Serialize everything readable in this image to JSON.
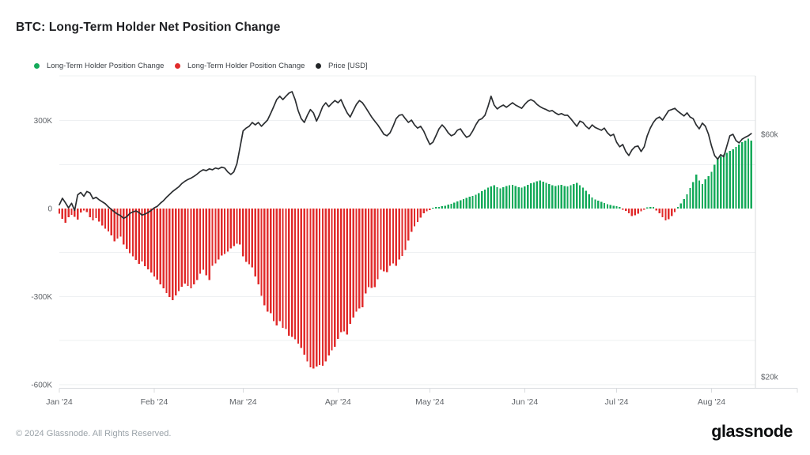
{
  "title": "BTC: Long-Term Holder Net Position Change",
  "legend": [
    {
      "label": "Long-Term Holder Position Change",
      "color": "#14aa5a"
    },
    {
      "label": "Long-Term Holder Position Change",
      "color": "#e12b2b"
    },
    {
      "label": "Price [USD]",
      "color": "#222527"
    }
  ],
  "footer": {
    "copyright": "© 2024 Glassnode. All Rights Reserved.",
    "brand": "glassnode"
  },
  "colors": {
    "positive_bar": "#14aa5a",
    "negative_bar": "#e12b2b",
    "price_line": "#2b2e31",
    "gridline": "#eef0f2",
    "axis_line": "#d8dbde",
    "tick_text": "#5f6368",
    "background": "#ffffff"
  },
  "axes": {
    "left": {
      "unit": "K BTC",
      "tick_labels": [
        "300K",
        "0",
        "-300K",
        "-600K"
      ],
      "tick_values": [
        300,
        0,
        -300,
        -600
      ],
      "gridline_values": [
        300,
        150,
        -150,
        -300,
        -450,
        -600
      ]
    },
    "right": {
      "unit": "USD",
      "scale": "log",
      "tick_labels": [
        "$60k",
        "$20k"
      ],
      "tick_values": [
        60,
        20
      ]
    },
    "bottom": {
      "tick_labels": [
        "Jan '24",
        "Feb '24",
        "Mar '24",
        "Apr '24",
        "May '24",
        "Jun '24",
        "Jul '24",
        "Aug '24"
      ],
      "tick_day_offsets": [
        0,
        31,
        60,
        91,
        121,
        152,
        182,
        213
      ]
    }
  },
  "chart_data": {
    "type": "combo-bar-line",
    "x_start": "2024-01-01",
    "frequency": "daily",
    "n_points": 227,
    "left_axis_range_k": [
      -650,
      330
    ],
    "right_axis_range_usd": [
      20000,
      60000
    ],
    "right_axis_scale": "log",
    "grid": "horizontal-only",
    "legend_position": "top-left",
    "series": [
      {
        "name": "Long-Term Holder Position Change",
        "render": "bar",
        "axis": "left",
        "unit": "K BTC",
        "values": [
          -18,
          -35,
          -48,
          -30,
          -22,
          -28,
          -38,
          -14,
          -7,
          -12,
          -30,
          -40,
          -32,
          -45,
          -58,
          -68,
          -78,
          -92,
          -112,
          -102,
          -96,
          -122,
          -138,
          -152,
          -163,
          -175,
          -188,
          -180,
          -197,
          -208,
          -218,
          -232,
          -242,
          -258,
          -272,
          -288,
          -302,
          -312,
          -296,
          -281,
          -266,
          -256,
          -264,
          -272,
          -259,
          -244,
          -222,
          -209,
          -228,
          -244,
          -195,
          -187,
          -174,
          -160,
          -155,
          -147,
          -136,
          -128,
          -120,
          -123,
          -163,
          -182,
          -190,
          -201,
          -231,
          -258,
          -298,
          -330,
          -352,
          -357,
          -384,
          -398,
          -384,
          -406,
          -411,
          -433,
          -438,
          -446,
          -461,
          -476,
          -498,
          -521,
          -541,
          -546,
          -539,
          -533,
          -536,
          -521,
          -501,
          -484,
          -471,
          -444,
          -421,
          -419,
          -430,
          -393,
          -371,
          -352,
          -341,
          -336,
          -290,
          -268,
          -271,
          -268,
          -241,
          -209,
          -214,
          -217,
          -195,
          -187,
          -195,
          -174,
          -161,
          -141,
          -109,
          -79,
          -61,
          -46,
          -31,
          -16,
          -9,
          -6,
          3,
          5,
          6,
          8,
          10,
          13,
          16,
          20,
          24,
          28,
          32,
          36,
          40,
          43,
          47,
          53,
          59,
          65,
          71,
          75,
          79,
          73,
          69,
          73,
          77,
          79,
          81,
          77,
          73,
          71,
          75,
          81,
          86,
          89,
          93,
          95,
          91,
          87,
          83,
          79,
          77,
          79,
          81,
          77,
          75,
          79,
          84,
          88,
          80,
          72,
          60,
          48,
          38,
          31,
          27,
          23,
          19,
          15,
          12,
          10,
          8,
          5,
          -4,
          -8,
          -16,
          -26,
          -23,
          -18,
          -9,
          -4,
          4,
          6,
          5,
          -7,
          -16,
          -30,
          -40,
          -36,
          -26,
          -12,
          6,
          18,
          32,
          48,
          70,
          90,
          116,
          95,
          84,
          100,
          110,
          125,
          150,
          168,
          178,
          185,
          190,
          196,
          202,
          210,
          218,
          226,
          232,
          238,
          232
        ]
      },
      {
        "name": "Price [USD]",
        "render": "line",
        "axis": "right",
        "unit": "thousand USD",
        "values": [
          43.6,
          44.9,
          44.0,
          43.0,
          43.9,
          42.5,
          45.6,
          46.1,
          45.3,
          46.3,
          46.0,
          44.8,
          45.1,
          44.6,
          44.2,
          43.8,
          43.2,
          42.7,
          42.2,
          41.8,
          41.5,
          41.0,
          41.3,
          41.9,
          42.2,
          42.4,
          42.1,
          41.6,
          41.8,
          42.1,
          42.5,
          43.0,
          43.3,
          43.9,
          44.4,
          45.1,
          45.7,
          46.3,
          46.8,
          47.3,
          48.0,
          48.5,
          48.9,
          49.2,
          49.6,
          50.1,
          50.7,
          51.1,
          50.9,
          51.3,
          51.1,
          51.5,
          51.3,
          51.7,
          51.5,
          50.6,
          50.0,
          50.6,
          52.5,
          56.5,
          60.9,
          61.7,
          62.2,
          63.3,
          62.6,
          63.3,
          62.2,
          63.1,
          64.0,
          65.9,
          68.0,
          70.2,
          71.3,
          70.2,
          71.3,
          72.3,
          72.8,
          70.2,
          66.8,
          64.4,
          63.3,
          65.4,
          67.1,
          66.1,
          63.7,
          65.6,
          68.0,
          69.2,
          68.0,
          69.0,
          69.9,
          69.2,
          70.2,
          68.0,
          66.1,
          64.9,
          66.8,
          68.7,
          69.9,
          69.2,
          67.8,
          66.3,
          64.9,
          63.7,
          62.6,
          61.3,
          60.0,
          59.6,
          60.4,
          62.2,
          64.4,
          65.4,
          65.6,
          64.4,
          63.3,
          64.0,
          62.6,
          61.7,
          62.2,
          60.9,
          59.0,
          57.3,
          57.9,
          59.6,
          61.5,
          62.6,
          61.7,
          60.4,
          59.6,
          60.0,
          61.1,
          61.5,
          60.2,
          59.2,
          59.6,
          60.9,
          62.6,
          64.0,
          64.4,
          65.4,
          68.0,
          71.3,
          68.5,
          67.3,
          68.0,
          68.5,
          67.8,
          68.5,
          69.2,
          68.5,
          68.0,
          67.5,
          68.7,
          69.7,
          70.2,
          69.7,
          68.7,
          68.0,
          67.5,
          67.1,
          66.6,
          66.8,
          66.1,
          65.6,
          65.9,
          65.4,
          65.4,
          64.4,
          63.3,
          62.2,
          63.7,
          63.3,
          62.2,
          61.5,
          62.6,
          61.9,
          61.5,
          61.1,
          61.7,
          60.4,
          59.6,
          60.0,
          57.9,
          56.7,
          57.3,
          55.5,
          54.5,
          55.9,
          56.7,
          56.9,
          55.5,
          56.7,
          59.6,
          61.7,
          63.3,
          64.4,
          64.9,
          64.0,
          65.4,
          66.8,
          67.1,
          67.5,
          66.6,
          65.9,
          65.2,
          66.1,
          64.9,
          64.4,
          62.6,
          61.5,
          63.1,
          62.2,
          60.0,
          56.9,
          54.5,
          53.6,
          54.7,
          54.2,
          56.9,
          59.6,
          60.0,
          58.3,
          57.7,
          58.7,
          59.2,
          59.6,
          60.2
        ]
      }
    ]
  }
}
